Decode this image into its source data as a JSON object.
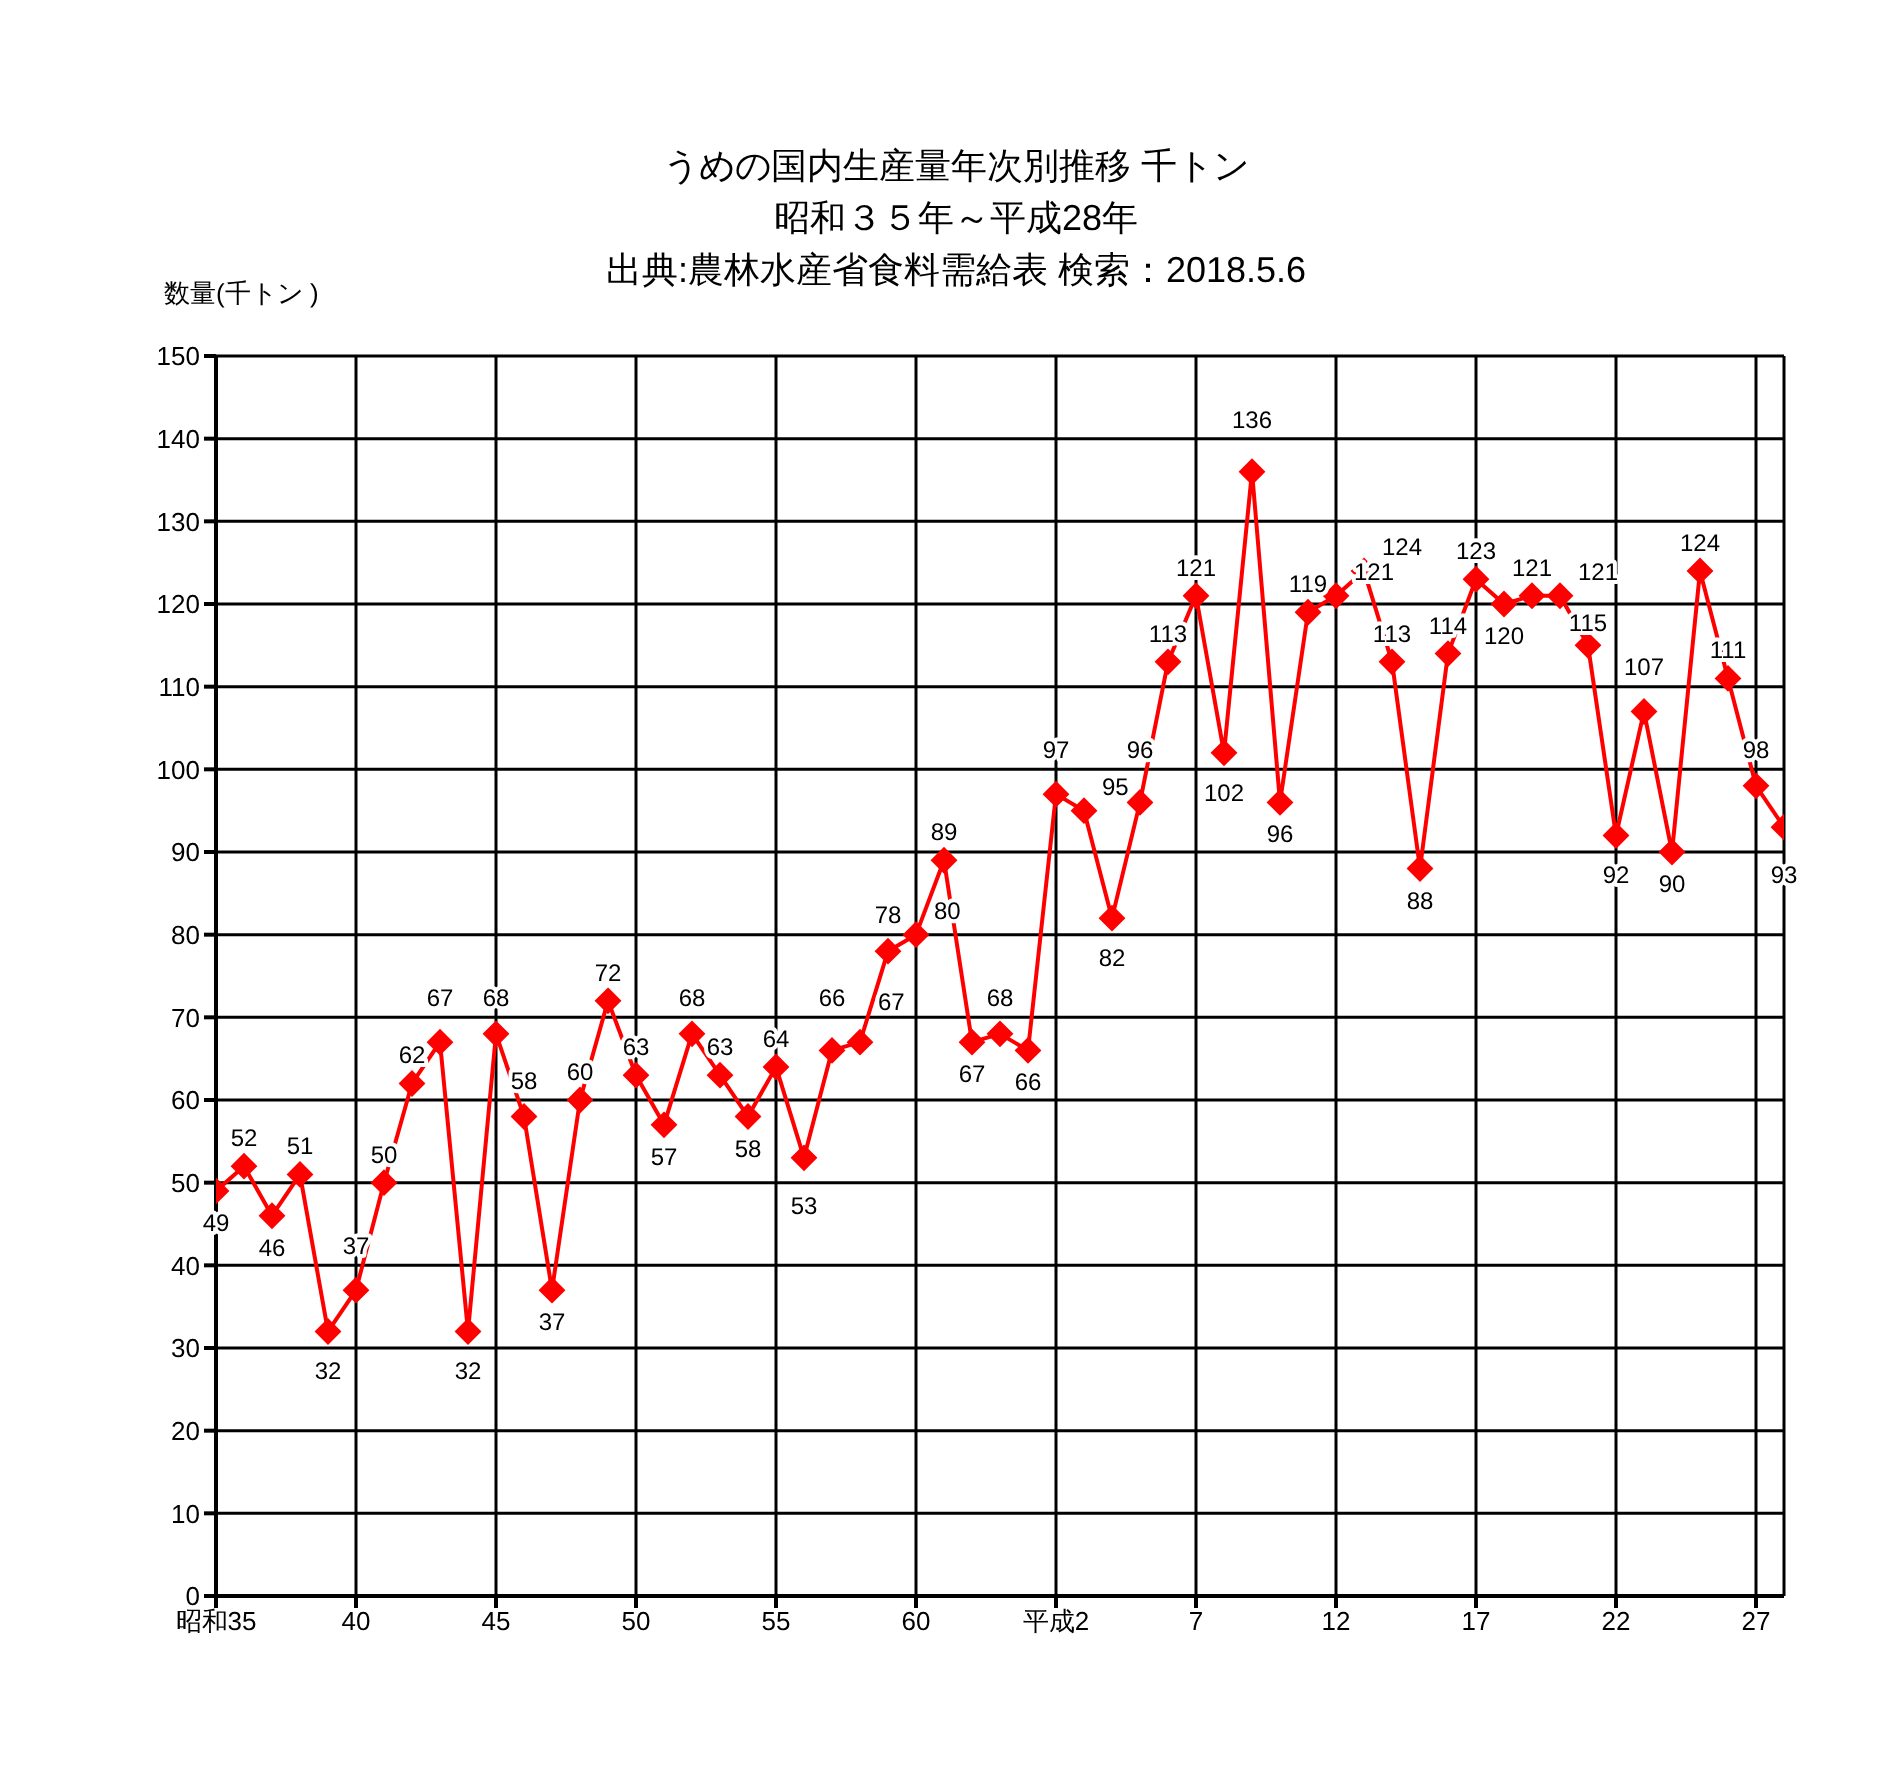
{
  "chart_data": {
    "type": "line",
    "title": "うめの国内生産量年次別推移 千トン",
    "subtitle": "昭和３５年～平成28年",
    "annotations": [
      "出典:農林水産省食料需給表 検索：2018.5.6"
    ],
    "ylabel": "数量(千トン )",
    "categories": [
      "昭和35",
      null,
      null,
      null,
      null,
      "40",
      null,
      null,
      null,
      null,
      "45",
      null,
      null,
      null,
      null,
      "50",
      null,
      null,
      null,
      null,
      "55",
      null,
      null,
      null,
      null,
      "60",
      null,
      null,
      null,
      null,
      "平成2",
      null,
      null,
      null,
      null,
      "7",
      null,
      null,
      null,
      null,
      "12",
      null,
      null,
      null,
      null,
      "17",
      null,
      null,
      null,
      null,
      "22",
      null,
      null,
      null,
      null,
      "27",
      null
    ],
    "series": [
      {
        "color": "#ff0000",
        "values": [
          49,
          52,
          46,
          51,
          32,
          37,
          50,
          62,
          67,
          32,
          68,
          58,
          37,
          60,
          72,
          63,
          57,
          68,
          63,
          58,
          64,
          53,
          66,
          67,
          78,
          80,
          89,
          67,
          68,
          66,
          97,
          95,
          82,
          96,
          113,
          121,
          102,
          136,
          96,
          119,
          121,
          124,
          113,
          88,
          114,
          123,
          120,
          121,
          121,
          115,
          92,
          107,
          90,
          124,
          111,
          98,
          93
        ]
      }
    ],
    "ylim": [
      0,
      150
    ],
    "yticks": [
      0,
      10,
      20,
      30,
      40,
      50,
      60,
      70,
      80,
      90,
      100,
      110,
      120,
      130,
      140,
      150
    ],
    "grid": true,
    "marker": "diamond",
    "line_style": "solid",
    "data_labels": true
  }
}
